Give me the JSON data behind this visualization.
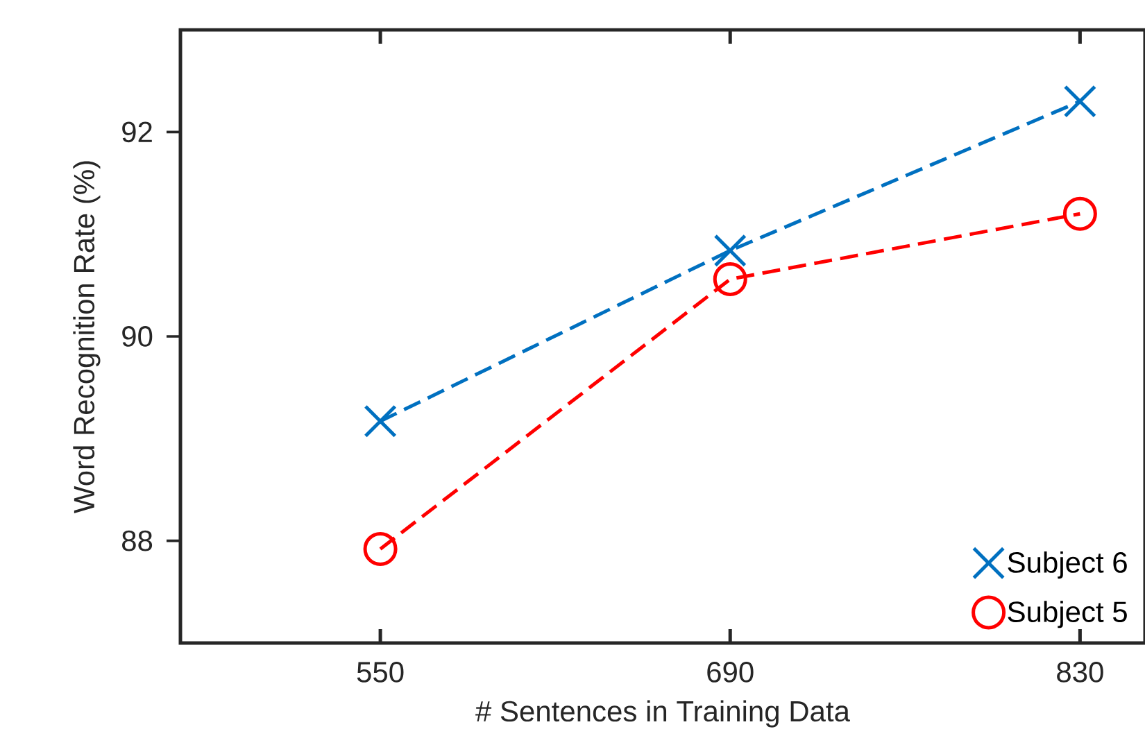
{
  "chart_data": {
    "type": "line",
    "xlabel": "# Sentences in Training Data",
    "ylabel": "Word Recognition Rate (%)",
    "x": [
      550,
      690,
      830
    ],
    "series": [
      {
        "name": "Subject 6",
        "color": "#0070c0",
        "values": [
          89.17,
          90.84,
          92.3
        ],
        "marker": "cross"
      },
      {
        "name": "Subject 5",
        "color": "#ff0000",
        "values": [
          87.92,
          90.56,
          91.2
        ],
        "marker": "circle"
      }
    ],
    "xlim": [
      470,
      856
    ],
    "ylim": [
      87,
      93
    ],
    "xticks": [
      550,
      690,
      830
    ],
    "yticks": [
      88,
      90,
      92
    ],
    "line_style": "dashed",
    "legend": "bottom right",
    "grid": false
  }
}
